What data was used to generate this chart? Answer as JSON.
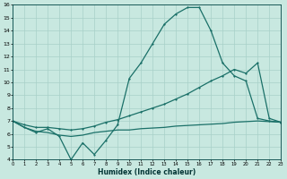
{
  "xlabel": "Humidex (Indice chaleur)",
  "bg_color": "#c8e8e0",
  "grid_color": "#a8d0c8",
  "line_color": "#1a7068",
  "xlim": [
    0,
    23
  ],
  "ylim": [
    4,
    16
  ],
  "xticks": [
    0,
    1,
    2,
    3,
    4,
    5,
    6,
    7,
    8,
    9,
    10,
    11,
    12,
    13,
    14,
    15,
    16,
    17,
    18,
    19,
    20,
    21,
    22,
    23
  ],
  "yticks": [
    4,
    5,
    6,
    7,
    8,
    9,
    10,
    11,
    12,
    13,
    14,
    15,
    16
  ],
  "line1_x": [
    0,
    1,
    2,
    3,
    4,
    5,
    6,
    7,
    8,
    9,
    10,
    11,
    12,
    13,
    14,
    15,
    16,
    17,
    18,
    19,
    20,
    21,
    22,
    23
  ],
  "line1_y": [
    7.0,
    6.5,
    6.1,
    6.4,
    5.8,
    4.0,
    5.3,
    4.4,
    5.5,
    6.7,
    10.3,
    11.5,
    13.0,
    14.5,
    15.3,
    15.8,
    15.8,
    14.0,
    11.5,
    10.5,
    10.1,
    7.2,
    7.0,
    6.9
  ],
  "line2_x": [
    0,
    1,
    2,
    3,
    4,
    5,
    6,
    7,
    8,
    9,
    10,
    11,
    12,
    13,
    14,
    15,
    16,
    17,
    18,
    19,
    20,
    21,
    22,
    23
  ],
  "line2_y": [
    7.0,
    6.7,
    6.5,
    6.5,
    6.4,
    6.3,
    6.4,
    6.6,
    6.9,
    7.1,
    7.4,
    7.7,
    8.0,
    8.3,
    8.7,
    9.1,
    9.6,
    10.1,
    10.5,
    11.0,
    10.7,
    11.5,
    7.2,
    6.9
  ],
  "line3_x": [
    0,
    1,
    2,
    3,
    4,
    5,
    6,
    7,
    8,
    9,
    10,
    11,
    12,
    13,
    14,
    15,
    16,
    17,
    18,
    19,
    20,
    21,
    22,
    23
  ],
  "line3_y": [
    7.0,
    6.5,
    6.2,
    6.1,
    5.9,
    5.8,
    5.9,
    6.1,
    6.2,
    6.3,
    6.3,
    6.4,
    6.45,
    6.5,
    6.6,
    6.65,
    6.7,
    6.75,
    6.8,
    6.9,
    6.95,
    7.0,
    6.95,
    6.9
  ]
}
